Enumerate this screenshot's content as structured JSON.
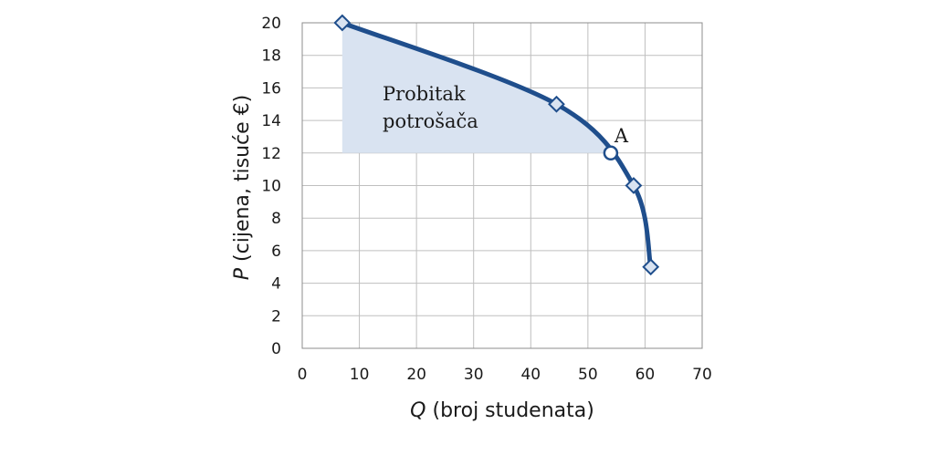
{
  "chart_data": {
    "type": "line",
    "xlabel": {
      "var": "Q",
      "rest": " (broj studenata)"
    },
    "ylabel": {
      "var": "P",
      "rest": " (cijena, tisuće €)"
    },
    "xlim": [
      0,
      70
    ],
    "ylim": [
      0,
      20
    ],
    "x_ticks": [
      0,
      10,
      20,
      30,
      40,
      50,
      60,
      70
    ],
    "y_ticks": [
      0,
      2,
      4,
      6,
      8,
      10,
      12,
      14,
      16,
      18,
      20
    ],
    "grid": true,
    "series": [
      {
        "color": "#1f4e8c",
        "marker": "diamond",
        "points": [
          {
            "x": 7,
            "y": 20
          },
          {
            "x": 44.5,
            "y": 15
          },
          {
            "x": 58,
            "y": 10
          },
          {
            "x": 61,
            "y": 5
          }
        ]
      }
    ],
    "highlight_point": {
      "x": 54,
      "y": 12,
      "label": "A",
      "marker": "circle"
    },
    "shaded_region": {
      "color": "#d9e3f1",
      "label_lines": [
        "Probitak",
        "potrošača"
      ],
      "price_level": 12
    }
  }
}
